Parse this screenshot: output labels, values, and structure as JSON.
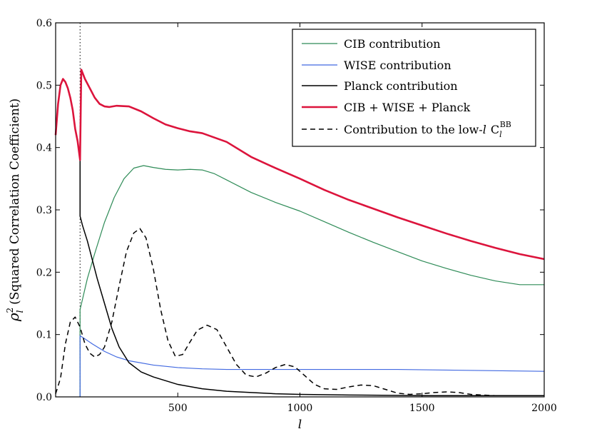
{
  "chart_data": {
    "type": "line",
    "xlabel": "l",
    "ylabel": "ρ_l^2 (Squared Correlation Coefficient)",
    "ylabel_main": "(Squared Correlation Coefficient)",
    "xlim": [
      0,
      2000
    ],
    "ylim": [
      0.0,
      0.6
    ],
    "x_ticks": [
      500,
      1000,
      1500,
      2000
    ],
    "y_ticks": [
      0.0,
      0.1,
      0.2,
      0.3,
      0.4,
      0.5,
      0.6
    ],
    "x_tick_labels": [
      "500",
      "1000",
      "1500",
      "2000"
    ],
    "y_tick_labels": [
      "0.0",
      "0.1",
      "0.2",
      "0.3",
      "0.4",
      "0.5",
      "0.6"
    ],
    "vline_x": 100,
    "legend_position": "top-right",
    "series": [
      {
        "name": "CIB contribution",
        "color": "#2e8b57",
        "width": 1.2,
        "dash": "",
        "x": [
          100,
          100,
          130,
          160,
          200,
          240,
          280,
          320,
          360,
          400,
          450,
          500,
          550,
          600,
          650,
          700,
          800,
          900,
          1000,
          1100,
          1200,
          1300,
          1400,
          1500,
          1600,
          1700,
          1800,
          1900,
          2000
        ],
        "y": [
          0.0,
          0.14,
          0.19,
          0.23,
          0.28,
          0.32,
          0.35,
          0.367,
          0.371,
          0.368,
          0.365,
          0.364,
          0.365,
          0.364,
          0.358,
          0.348,
          0.328,
          0.312,
          0.298,
          0.281,
          0.264,
          0.248,
          0.233,
          0.218,
          0.206,
          0.195,
          0.186,
          0.18,
          0.18
        ]
      },
      {
        "name": "WISE contribution",
        "color": "#4169e1",
        "width": 1.2,
        "dash": "",
        "x": [
          100,
          100,
          100,
          120,
          150,
          200,
          250,
          300,
          400,
          500,
          600,
          700,
          800,
          1000,
          1200,
          1400,
          1600,
          1800,
          2000
        ],
        "y": [
          0.0,
          0.001,
          0.098,
          0.093,
          0.085,
          0.073,
          0.064,
          0.058,
          0.051,
          0.047,
          0.045,
          0.044,
          0.044,
          0.044,
          0.044,
          0.044,
          0.043,
          0.042,
          0.041
        ]
      },
      {
        "name": "Planck contribution",
        "color": "#000000",
        "width": 1.5,
        "dash": "",
        "x": [
          0,
          10,
          20,
          30,
          40,
          50,
          60,
          70,
          80,
          90,
          100,
          100,
          110,
          130,
          150,
          170,
          200,
          230,
          260,
          300,
          350,
          400,
          500,
          600,
          700,
          800,
          900,
          1000,
          1200,
          1500,
          2000
        ],
        "y": [
          0.42,
          0.47,
          0.5,
          0.51,
          0.505,
          0.495,
          0.48,
          0.46,
          0.43,
          0.41,
          0.38,
          0.29,
          0.275,
          0.25,
          0.22,
          0.19,
          0.15,
          0.11,
          0.08,
          0.055,
          0.04,
          0.032,
          0.02,
          0.013,
          0.009,
          0.007,
          0.005,
          0.004,
          0.003,
          0.002,
          0.002
        ]
      },
      {
        "name": "CIB + WISE + Planck",
        "color": "#dc143c",
        "width": 2.6,
        "dash": "",
        "x": [
          0,
          10,
          20,
          30,
          40,
          50,
          60,
          70,
          80,
          90,
          100,
          100,
          105,
          120,
          140,
          160,
          180,
          200,
          220,
          250,
          300,
          350,
          400,
          450,
          500,
          550,
          600,
          650,
          700,
          800,
          900,
          1000,
          1100,
          1200,
          1300,
          1400,
          1500,
          1600,
          1700,
          1800,
          1900,
          2000
        ],
        "y": [
          0.42,
          0.47,
          0.5,
          0.51,
          0.505,
          0.495,
          0.48,
          0.46,
          0.43,
          0.41,
          0.38,
          0.382,
          0.525,
          0.51,
          0.495,
          0.48,
          0.47,
          0.466,
          0.465,
          0.467,
          0.466,
          0.458,
          0.447,
          0.437,
          0.431,
          0.426,
          0.423,
          0.416,
          0.409,
          0.385,
          0.367,
          0.35,
          0.332,
          0.316,
          0.302,
          0.288,
          0.275,
          0.262,
          0.25,
          0.239,
          0.229,
          0.221
        ]
      },
      {
        "name": "Contribution to the low-l C_l^BB",
        "color": "#000000",
        "width": 1.5,
        "dash": "7,5",
        "x": [
          0,
          20,
          40,
          60,
          80,
          100,
          120,
          140,
          160,
          180,
          200,
          230,
          260,
          290,
          320,
          345,
          370,
          400,
          430,
          460,
          490,
          520,
          550,
          580,
          620,
          660,
          700,
          740,
          780,
          820,
          860,
          900,
          940,
          980,
          1020,
          1060,
          1100,
          1150,
          1200,
          1250,
          1300,
          1350,
          1400,
          1450,
          1500,
          1550,
          1600,
          1650,
          1700,
          1800,
          1900,
          2000
        ],
        "y": [
          0.005,
          0.03,
          0.085,
          0.12,
          0.128,
          0.112,
          0.085,
          0.07,
          0.064,
          0.068,
          0.08,
          0.12,
          0.178,
          0.233,
          0.263,
          0.27,
          0.255,
          0.205,
          0.14,
          0.09,
          0.065,
          0.068,
          0.088,
          0.107,
          0.115,
          0.108,
          0.08,
          0.052,
          0.035,
          0.032,
          0.038,
          0.047,
          0.052,
          0.048,
          0.034,
          0.02,
          0.013,
          0.012,
          0.016,
          0.019,
          0.018,
          0.012,
          0.006,
          0.004,
          0.005,
          0.007,
          0.008,
          0.007,
          0.004,
          0.002,
          0.002,
          0.002
        ]
      }
    ],
    "legend": [
      {
        "label": "CIB contribution",
        "color": "#2e8b57",
        "width": 1.2,
        "dash": ""
      },
      {
        "label": "WISE contribution",
        "color": "#4169e1",
        "width": 1.2,
        "dash": ""
      },
      {
        "label": "Planck contribution",
        "color": "#000000",
        "width": 1.5,
        "dash": ""
      },
      {
        "label": "CIB + WISE + Planck",
        "color": "#dc143c",
        "width": 2.6,
        "dash": ""
      },
      {
        "label": "Contribution to the low-l C_l^BB",
        "color": "#000000",
        "width": 1.5,
        "dash": "7,5"
      }
    ],
    "legend_texts": {
      "cib": "CIB contribution",
      "wise": "WISE contribution",
      "planck": "Planck contribution",
      "total": "CIB + WISE + Planck",
      "lowl_prefix": "Contribution to the low-",
      "lowl_l": "l",
      "lowl_C": "C",
      "lowl_sub": "l",
      "lowl_sup": "BB"
    }
  }
}
